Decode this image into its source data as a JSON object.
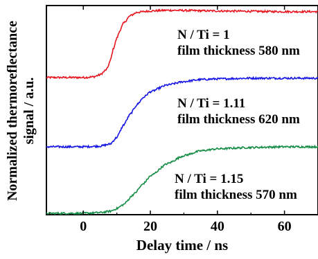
{
  "chart_data": {
    "type": "line",
    "xlabel": "Delay time / ns",
    "ylabel_line1": "Normalized thermoreflectance",
    "ylabel_line2": "signal / a.u.",
    "xlim": [
      -11,
      70
    ],
    "ylim": [
      0,
      3.08
    ],
    "x_ticks": [
      0,
      20,
      40,
      60
    ],
    "x_tick_labels": [
      "0",
      "20",
      "40",
      "60"
    ],
    "y_ticks_shown": false,
    "grid": false,
    "series": [
      {
        "label1": "N / Ti = 1",
        "label2": "film thickness 580 nm",
        "color": "#e8141e",
        "points": [
          [
            -11,
            2.02
          ],
          [
            -5,
            2.02
          ],
          [
            0,
            2.02
          ],
          [
            3,
            2.03
          ],
          [
            5,
            2.06
          ],
          [
            7,
            2.14
          ],
          [
            8,
            2.26
          ],
          [
            9,
            2.45
          ],
          [
            10,
            2.6
          ],
          [
            11,
            2.72
          ],
          [
            12,
            2.82
          ],
          [
            14,
            2.93
          ],
          [
            16,
            2.98
          ],
          [
            20,
            3.0
          ],
          [
            25,
            3.01
          ],
          [
            40,
            3.0
          ],
          [
            60,
            2.99
          ],
          [
            70,
            2.99
          ]
        ]
      },
      {
        "label1": "N / Ti = 1.11",
        "label2": "film thickness 620 nm",
        "color": "#1414e6",
        "points": [
          [
            -11,
            1.0
          ],
          [
            0,
            1.0
          ],
          [
            5,
            1.01
          ],
          [
            8,
            1.04
          ],
          [
            10,
            1.14
          ],
          [
            12,
            1.32
          ],
          [
            14,
            1.48
          ],
          [
            16,
            1.62
          ],
          [
            18,
            1.73
          ],
          [
            20,
            1.81
          ],
          [
            25,
            1.91
          ],
          [
            30,
            1.96
          ],
          [
            35,
            1.99
          ],
          [
            40,
            2.0
          ],
          [
            50,
            2.01
          ],
          [
            60,
            2.01
          ],
          [
            70,
            2.01
          ]
        ]
      },
      {
        "label1": "N / Ti = 1.15",
        "label2": "film thickness 570 nm",
        "color": "#148c46",
        "points": [
          [
            -11,
            0.02
          ],
          [
            0,
            0.02
          ],
          [
            5,
            0.03
          ],
          [
            8,
            0.05
          ],
          [
            10,
            0.09
          ],
          [
            12,
            0.15
          ],
          [
            15,
            0.3
          ],
          [
            18,
            0.46
          ],
          [
            20,
            0.57
          ],
          [
            25,
            0.75
          ],
          [
            30,
            0.87
          ],
          [
            35,
            0.94
          ],
          [
            40,
            0.97
          ],
          [
            50,
            0.99
          ],
          [
            60,
            1.0
          ],
          [
            70,
            1.0
          ]
        ]
      }
    ]
  }
}
